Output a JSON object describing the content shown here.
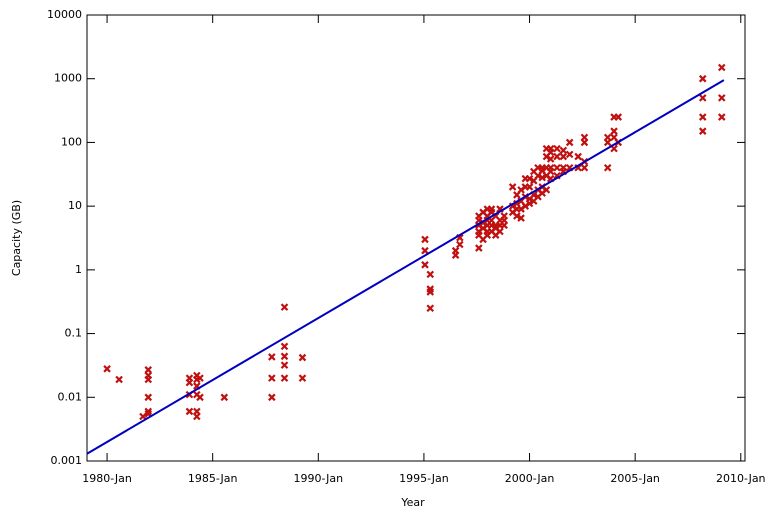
{
  "chart_data": {
    "type": "scatter",
    "xlabel": "Year",
    "ylabel": "Capacity (GB)",
    "log_y": true,
    "xlim": [
      1979.05,
      2010.2
    ],
    "ylim": [
      0.001,
      10000
    ],
    "xticks": [
      {
        "value": 1980,
        "label": "1980-Jan"
      },
      {
        "value": 1985,
        "label": "1985-Jan"
      },
      {
        "value": 1990,
        "label": "1990-Jan"
      },
      {
        "value": 1995,
        "label": "1995-Jan"
      },
      {
        "value": 2000,
        "label": "2000-Jan"
      },
      {
        "value": 2005,
        "label": "2005-Jan"
      },
      {
        "value": 2010,
        "label": "2010-Jan"
      }
    ],
    "yticks": [
      0.001,
      0.01,
      0.1,
      1,
      10,
      100,
      1000,
      10000
    ],
    "series": [
      {
        "type": "scatter",
        "color": "#c01010",
        "x": [
          1980.0,
          1980.57,
          1981.7,
          1981.95,
          1981.95,
          1981.95,
          1981.95,
          1981.95,
          1981.95,
          1983.9,
          1983.9,
          1983.9,
          1983.9,
          1984.25,
          1984.25,
          1984.25,
          1984.25,
          1984.25,
          1984.25,
          1984.4,
          1984.4,
          1985.55,
          1987.8,
          1987.8,
          1987.8,
          1988.4,
          1988.4,
          1988.4,
          1988.4,
          1988.4,
          1989.25,
          1989.25,
          1995.05,
          1995.05,
          1995.05,
          1995.3,
          1995.3,
          1995.3,
          1995.3,
          1996.5,
          1996.5,
          1996.7,
          1996.7,
          1997.6,
          1997.6,
          1997.6,
          1997.6,
          1997.6,
          1997.6,
          1997.8,
          1997.8,
          1997.8,
          1997.8,
          1998.0,
          1998.0,
          1998.0,
          1998.0,
          1998.0,
          1998.0,
          1998.2,
          1998.2,
          1998.2,
          1998.2,
          1998.2,
          1998.4,
          1998.4,
          1998.4,
          1998.4,
          1998.6,
          1998.6,
          1998.6,
          1998.6,
          1998.8,
          1998.8,
          1998.8,
          1999.2,
          1999.2,
          1999.2,
          1999.4,
          1999.4,
          1999.4,
          1999.4,
          1999.6,
          1999.6,
          1999.6,
          1999.6,
          1999.8,
          1999.8,
          1999.8,
          1999.8,
          2000.0,
          2000.0,
          2000.0,
          2000.0,
          2000.2,
          2000.2,
          2000.2,
          2000.2,
          2000.4,
          2000.4,
          2000.4,
          2000.4,
          2000.6,
          2000.6,
          2000.6,
          2000.6,
          2000.6,
          2000.8,
          2000.8,
          2000.8,
          2000.8,
          2000.8,
          2001.0,
          2001.0,
          2001.0,
          2001.0,
          2001.0,
          2001.0,
          2001.3,
          2001.3,
          2001.3,
          2001.3,
          2001.6,
          2001.6,
          2001.6,
          2001.6,
          2001.9,
          2001.9,
          2001.9,
          2002.3,
          2002.3,
          2002.6,
          2002.6,
          2002.6,
          2002.6,
          2003.7,
          2003.7,
          2003.7,
          2004.0,
          2004.0,
          2004.0,
          2004.0,
          2004.2,
          2004.2,
          2008.2,
          2008.2,
          2008.2,
          2008.2,
          2009.1,
          2009.1,
          2009.1
        ],
        "values": [
          0.028,
          0.019,
          0.005,
          0.027,
          0.022,
          0.019,
          0.01,
          0.006,
          0.0055,
          0.02,
          0.017,
          0.011,
          0.006,
          0.022,
          0.019,
          0.015,
          0.011,
          0.006,
          0.005,
          0.02,
          0.01,
          0.01,
          0.043,
          0.02,
          0.01,
          0.26,
          0.063,
          0.044,
          0.032,
          0.02,
          0.042,
          0.02,
          3,
          2,
          1.2,
          0.85,
          0.5,
          0.45,
          0.25,
          1.7,
          2,
          2.5,
          3.2,
          2.2,
          3.5,
          4,
          5,
          6,
          7,
          3,
          4.5,
          5.5,
          8,
          3.5,
          4,
          5,
          6,
          7,
          9,
          4,
          5,
          6,
          8,
          9,
          3.5,
          4.5,
          5,
          7,
          4,
          5,
          6,
          9,
          5,
          6,
          7,
          8,
          10,
          20,
          7,
          9,
          11,
          15,
          6.5,
          9,
          12,
          18,
          10,
          14,
          20,
          27,
          11,
          13,
          20,
          27,
          12,
          15,
          25,
          35,
          14,
          18,
          30,
          40,
          16,
          20,
          28,
          36,
          40,
          18,
          30,
          40,
          60,
          80,
          27,
          35,
          40,
          55,
          70,
          80,
          30,
          40,
          60,
          80,
          35,
          40,
          60,
          75,
          40,
          65,
          100,
          40,
          60,
          40,
          50,
          100,
          120,
          40,
          100,
          120,
          80,
          150,
          250,
          120,
          100,
          250,
          150,
          250,
          500,
          1000,
          250,
          500,
          1500
        ]
      },
      {
        "type": "line",
        "color": "#0000c0",
        "x": [
          1979.05,
          2009.2
        ],
        "values": [
          0.0013,
          950
        ]
      }
    ]
  }
}
